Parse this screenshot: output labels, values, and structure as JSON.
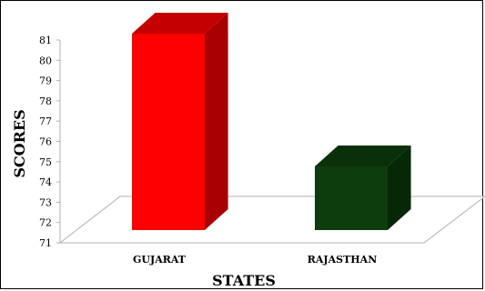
{
  "chart_data": {
    "type": "bar",
    "categories": [
      "GUJARAT",
      "RAJASTHAN"
    ],
    "values": [
      81,
      74.5
    ],
    "xlabel": "STATES",
    "ylabel": "SCORES",
    "ylim": [
      71,
      81
    ],
    "yticks": [
      71,
      72,
      73,
      74,
      75,
      76,
      77,
      78,
      79,
      80,
      81
    ],
    "grid": false,
    "style": "3d",
    "colors": {
      "GUJARAT": {
        "front": "#ff0000",
        "side": "#a80000",
        "top": "#c40000"
      },
      "RAJASTHAN": {
        "front": "#0d3d0d",
        "side": "#062806",
        "top": "#0a300a"
      }
    }
  }
}
